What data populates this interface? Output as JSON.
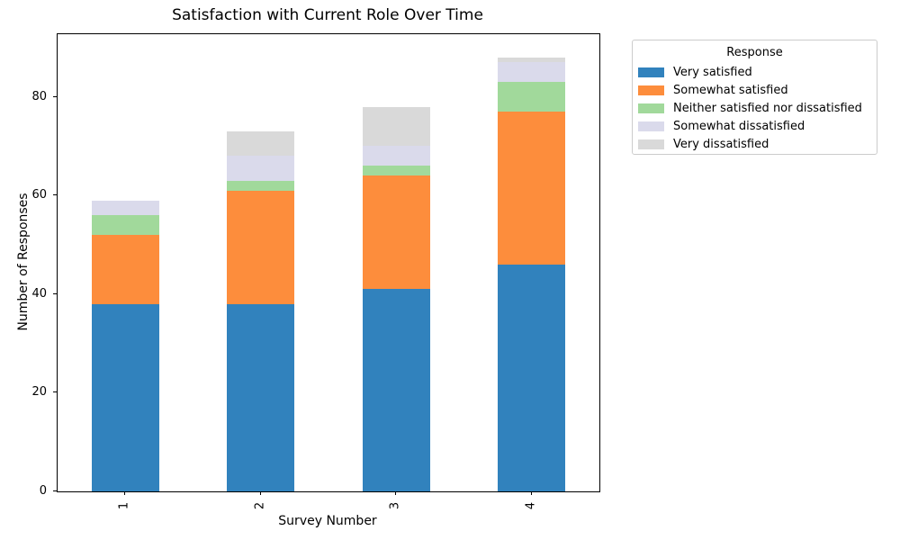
{
  "title": "Satisfaction with Current Role Over Time",
  "axes": {
    "xlabel": "Survey Number",
    "ylabel": "Number of Responses",
    "y_ticks": [
      0,
      20,
      40,
      60,
      80
    ],
    "x_ticks": [
      "1",
      "2",
      "3",
      "4"
    ]
  },
  "legend": {
    "title": "Response",
    "items": [
      "Very satisfied",
      "Somewhat satisfied",
      "Neither satisfied nor dissatisfied",
      "Somewhat dissatisfied",
      "Very dissatisfied"
    ]
  },
  "chart_data": {
    "type": "bar",
    "stacked": true,
    "title": "Satisfaction with Current Role Over Time",
    "xlabel": "Survey Number",
    "ylabel": "Number of Responses",
    "categories": [
      "1",
      "2",
      "3",
      "4"
    ],
    "series": [
      {
        "name": "Very satisfied",
        "color": "#3182bd",
        "values": [
          38,
          38,
          41,
          46
        ]
      },
      {
        "name": "Somewhat satisfied",
        "color": "#fd8d3c",
        "values": [
          14,
          23,
          23,
          31
        ]
      },
      {
        "name": "Neither satisfied nor dissatisfied",
        "color": "#a1d99b",
        "values": [
          4,
          2,
          2,
          6
        ]
      },
      {
        "name": "Somewhat dissatisfied",
        "color": "#dadaeb",
        "values": [
          3,
          5,
          4,
          4
        ]
      },
      {
        "name": "Very dissatisfied",
        "color": "#d9d9d9",
        "values": [
          0,
          5,
          8,
          1
        ]
      }
    ],
    "totals": [
      59,
      73,
      78,
      88
    ],
    "ylim": [
      0,
      92.7
    ],
    "y_tick_interval": 20,
    "grid": false,
    "legend_title": "Response",
    "legend_position": "outside-upper-right",
    "x_tick_rotation": 90,
    "bar_width_fraction": 0.5
  }
}
